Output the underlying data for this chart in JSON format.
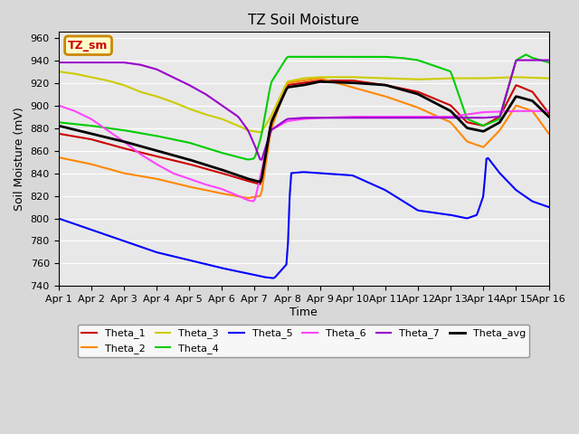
{
  "title": "TZ Soil Moisture",
  "xlabel": "Time",
  "ylabel": "Soil Moisture (mV)",
  "ylim": [
    740,
    965
  ],
  "yticks": [
    740,
    760,
    780,
    800,
    820,
    840,
    860,
    880,
    900,
    920,
    940,
    960
  ],
  "xtick_labels": [
    "Apr 1",
    "Apr 2",
    "Apr 3",
    "Apr 4",
    "Apr 5",
    "Apr 6",
    "Apr 7",
    "Apr 8",
    "Apr 9",
    "Apr 10",
    "Apr 11",
    "Apr 12",
    "Apr 13",
    "Apr 14",
    "Apr 15",
    "Apr 16"
  ],
  "plot_bg_color": "#e8e8e8",
  "fig_bg_color": "#d8d8d8",
  "legend_label": "TZ_sm",
  "legend_bg": "#ffffcc",
  "legend_border": "#cc8800",
  "series": {
    "Theta_1": {
      "color": "#cc0000",
      "lw": 1.5
    },
    "Theta_2": {
      "color": "#ff8800",
      "lw": 1.5
    },
    "Theta_3": {
      "color": "#cccc00",
      "lw": 1.5
    },
    "Theta_4": {
      "color": "#00cc00",
      "lw": 1.5
    },
    "Theta_5": {
      "color": "#0000ff",
      "lw": 1.5
    },
    "Theta_6": {
      "color": "#ff44ff",
      "lw": 1.5
    },
    "Theta_7": {
      "color": "#9900cc",
      "lw": 1.5
    },
    "Theta_avg": {
      "color": "#000000",
      "lw": 2.0
    }
  },
  "theta1_x": [
    0,
    1,
    2,
    3,
    4,
    5,
    5.8,
    6.2,
    6.5,
    7.0,
    7.5,
    8.0,
    9.0,
    10.0,
    11.0,
    12.0,
    12.5,
    13.0,
    13.5,
    14.0,
    14.5,
    15.0
  ],
  "theta1_y": [
    875,
    870,
    862,
    855,
    848,
    840,
    833,
    830,
    885,
    918,
    920,
    922,
    922,
    918,
    912,
    900,
    885,
    882,
    890,
    918,
    912,
    893
  ],
  "theta2_x": [
    0,
    1,
    2,
    3,
    4,
    5,
    5.8,
    6.2,
    6.5,
    7.0,
    7.5,
    8.0,
    9.0,
    10.0,
    11.0,
    12.0,
    12.5,
    13.0,
    13.5,
    14.0,
    14.5,
    15.0
  ],
  "theta2_y": [
    854,
    848,
    840,
    835,
    828,
    822,
    818,
    820,
    878,
    920,
    922,
    924,
    916,
    908,
    898,
    885,
    868,
    863,
    878,
    900,
    895,
    875
  ],
  "theta3_x": [
    0,
    0.5,
    1.0,
    1.5,
    2.0,
    2.5,
    3.0,
    3.5,
    4.0,
    4.5,
    5.0,
    5.5,
    5.8,
    6.2,
    6.5,
    7.0,
    7.5,
    8.0,
    9.0,
    10.0,
    11.0,
    12.0,
    13.0,
    14.0,
    15.0
  ],
  "theta3_y": [
    930,
    928,
    925,
    922,
    918,
    912,
    908,
    903,
    897,
    892,
    888,
    882,
    878,
    876,
    890,
    921,
    924,
    925,
    925,
    924,
    923,
    924,
    924,
    925,
    924
  ],
  "theta4_x": [
    0,
    1,
    2,
    3,
    4,
    5,
    5.8,
    6.0,
    6.2,
    6.5,
    7.0,
    7.5,
    8.0,
    9.0,
    10.0,
    10.5,
    11.0,
    11.5,
    12.0,
    12.5,
    13.0,
    13.5,
    14.0,
    14.3,
    14.5,
    15.0
  ],
  "theta4_y": [
    885,
    882,
    878,
    873,
    867,
    858,
    852,
    853,
    872,
    920,
    943,
    943,
    943,
    943,
    943,
    942,
    940,
    935,
    930,
    888,
    882,
    888,
    940,
    945,
    942,
    938
  ],
  "theta5_x": [
    0,
    1,
    2,
    3,
    4,
    5,
    5.5,
    6.0,
    6.3,
    6.6,
    7.0,
    7.1,
    7.5,
    8.0,
    9.0,
    10.0,
    11.0,
    11.5,
    12.0,
    12.5,
    12.8,
    13.0,
    13.1,
    13.5,
    14.0,
    14.5,
    15.0
  ],
  "theta5_y": [
    800,
    790,
    780,
    770,
    763,
    756,
    753,
    750,
    748,
    747,
    760,
    840,
    841,
    840,
    838,
    825,
    807,
    805,
    803,
    800,
    803,
    820,
    855,
    840,
    825,
    815,
    810
  ],
  "theta6_x": [
    0,
    0.5,
    1.0,
    1.5,
    2.0,
    2.5,
    3.0,
    3.5,
    4.0,
    4.5,
    5.0,
    5.5,
    5.8,
    6.0,
    6.2,
    6.5,
    7.0,
    7.5,
    8.0,
    9.0,
    10.0,
    11.0,
    12.0,
    12.5,
    13.0,
    14.0,
    15.0
  ],
  "theta6_y": [
    900,
    895,
    888,
    878,
    868,
    857,
    848,
    840,
    835,
    830,
    826,
    820,
    816,
    815,
    840,
    878,
    886,
    888,
    889,
    890,
    890,
    890,
    890,
    892,
    894,
    895,
    895
  ],
  "theta7_x": [
    0,
    1,
    2,
    2.5,
    3.0,
    3.5,
    4.0,
    4.5,
    5.0,
    5.5,
    5.8,
    6.0,
    6.2,
    6.5,
    7.0,
    7.5,
    8.0,
    9.0,
    10.0,
    11.0,
    12.0,
    13.0,
    13.5,
    14.0,
    14.5,
    15.0
  ],
  "theta7_y": [
    938,
    938,
    938,
    936,
    932,
    925,
    918,
    910,
    900,
    890,
    878,
    865,
    850,
    878,
    888,
    889,
    889,
    889,
    889,
    889,
    889,
    889,
    890,
    940,
    940,
    940
  ],
  "thetaavg_x": [
    0,
    1,
    2,
    3,
    4,
    5,
    5.8,
    6.2,
    6.5,
    7.0,
    7.5,
    8.0,
    9.0,
    10.0,
    11.0,
    12.0,
    12.5,
    13.0,
    13.5,
    14.0,
    14.5,
    15.0
  ],
  "thetaavg_y": [
    882,
    875,
    868,
    860,
    852,
    843,
    835,
    832,
    884,
    916,
    918,
    921,
    920,
    918,
    910,
    895,
    880,
    877,
    885,
    908,
    904,
    890
  ]
}
